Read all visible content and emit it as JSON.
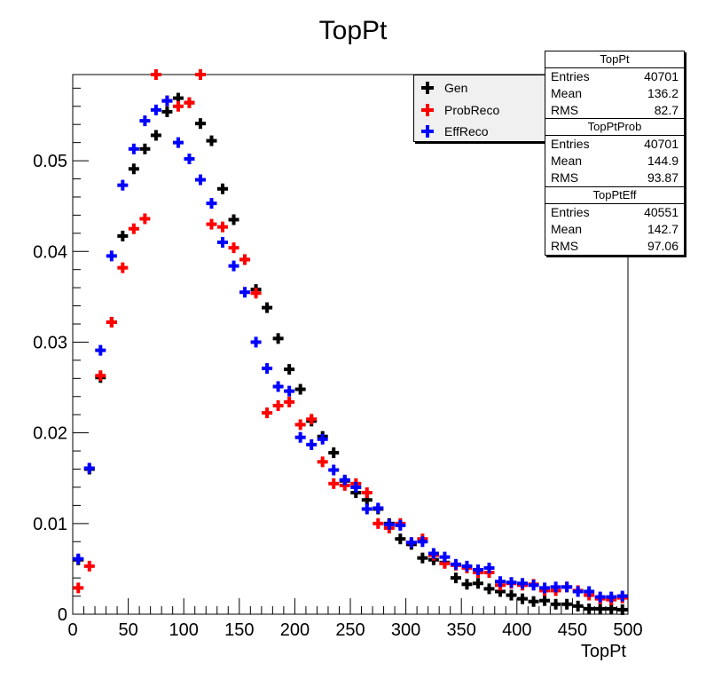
{
  "chart_data": {
    "type": "scatter",
    "title": "TopPt",
    "xlabel": "TopPt",
    "ylabel": "",
    "xlim": [
      0,
      500
    ],
    "ylim": [
      0,
      0.0595
    ],
    "x_ticks": [
      "0",
      "50",
      "100",
      "150",
      "200",
      "250",
      "300",
      "350",
      "400",
      "450",
      "500"
    ],
    "y_ticks": [
      "0",
      "0.01",
      "0.02",
      "0.03",
      "0.04",
      "0.05"
    ],
    "legend_position": "top-right",
    "x": [
      5,
      15,
      25,
      35,
      45,
      55,
      65,
      75,
      85,
      95,
      105,
      115,
      125,
      135,
      145,
      155,
      165,
      175,
      185,
      195,
      205,
      215,
      225,
      235,
      245,
      255,
      265,
      275,
      285,
      295,
      305,
      315,
      325,
      335,
      345,
      355,
      365,
      375,
      385,
      395,
      405,
      415,
      425,
      435,
      445,
      455,
      465,
      475,
      485,
      495
    ],
    "series": [
      {
        "name": "Gen",
        "color": "#000000",
        "values": [
          0.006,
          0.016,
          0.0261,
          0.0322,
          0.0417,
          0.0491,
          0.0513,
          0.0528,
          0.0554,
          0.0569,
          0.0564,
          0.0541,
          0.0522,
          0.0469,
          0.0435,
          0.0391,
          0.0358,
          0.0338,
          0.0304,
          0.027,
          0.0248,
          0.0213,
          0.0196,
          0.0178,
          0.0147,
          0.0134,
          0.0126,
          0.0116,
          0.01,
          0.0083,
          0.0077,
          0.0062,
          0.006,
          0.0057,
          0.004,
          0.0033,
          0.0034,
          0.0028,
          0.0025,
          0.0021,
          0.0017,
          0.0014,
          0.0015,
          0.0011,
          0.0011,
          0.0009,
          0.0006,
          0.0006,
          0.0006,
          0.0005
        ]
      },
      {
        "name": "ProbReco",
        "color": "#ff0000",
        "values": [
          0.0029,
          0.0053,
          0.0263,
          0.0322,
          0.0382,
          0.0425,
          0.0436,
          0.0595,
          0.0566,
          0.056,
          0.0564,
          0.0595,
          0.043,
          0.0427,
          0.0404,
          0.0391,
          0.0354,
          0.0222,
          0.023,
          0.0234,
          0.0209,
          0.0215,
          0.0168,
          0.0144,
          0.0142,
          0.0144,
          0.0134,
          0.01,
          0.0095,
          0.01,
          0.0079,
          0.0083,
          0.0065,
          0.0056,
          0.0054,
          0.0051,
          0.0046,
          0.0046,
          0.0032,
          0.0034,
          0.0032,
          0.0033,
          0.0026,
          0.0026,
          0.003,
          0.0026,
          0.0021,
          0.0017,
          0.0016,
          0.0018
        ]
      },
      {
        "name": "EffReco",
        "color": "#0000ff",
        "values": [
          0.0061,
          0.0161,
          0.0291,
          0.0395,
          0.0473,
          0.0513,
          0.0544,
          0.0556,
          0.0566,
          0.052,
          0.0502,
          0.0479,
          0.0453,
          0.041,
          0.0384,
          0.0355,
          0.03,
          0.0271,
          0.0251,
          0.0246,
          0.0195,
          0.0187,
          0.0193,
          0.0159,
          0.0148,
          0.014,
          0.0116,
          0.0117,
          0.0099,
          0.0098,
          0.0079,
          0.008,
          0.0067,
          0.0063,
          0.0055,
          0.0053,
          0.0049,
          0.0051,
          0.0036,
          0.0035,
          0.0034,
          0.0032,
          0.0029,
          0.003,
          0.003,
          0.0025,
          0.0025,
          0.0019,
          0.0019,
          0.002
        ]
      }
    ]
  },
  "legend": {
    "items": [
      {
        "label": "Gen",
        "color": "#000000"
      },
      {
        "label": "ProbReco",
        "color": "#ff0000"
      },
      {
        "label": "EffReco",
        "color": "#0000ff"
      }
    ]
  },
  "stats": [
    {
      "title": "TopPt",
      "entries_label": "Entries",
      "entries": "40701",
      "mean_label": "Mean",
      "mean": "136.2",
      "rms_label": "RMS",
      "rms": "82.7"
    },
    {
      "title": "TopPtProb",
      "entries_label": "Entries",
      "entries": "40701",
      "mean_label": "Mean",
      "mean": "144.9",
      "rms_label": "RMS",
      "rms": "93.87"
    },
    {
      "title": "TopPtEff",
      "entries_label": "Entries",
      "entries": "40551",
      "mean_label": "Mean",
      "mean": "142.7",
      "rms_label": "RMS",
      "rms": "97.06"
    }
  ]
}
